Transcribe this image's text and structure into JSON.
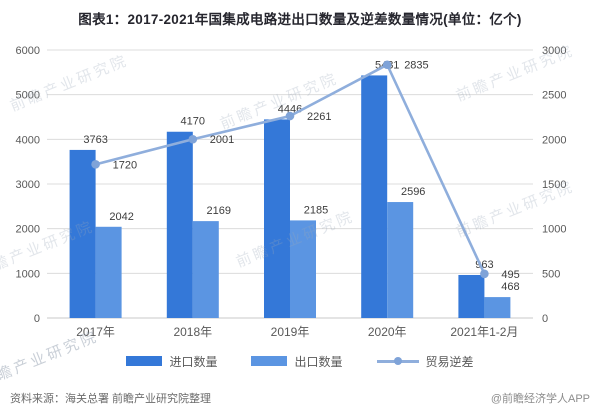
{
  "title": "图表1：2017-2021年国集成电路进出口数量及逆差数量情况(单位：亿个)",
  "colors": {
    "import_bar": "#3478d8",
    "export_bar": "#5b95e2",
    "deficit_line": "#8faedc",
    "deficit_marker": "#7fa3d8",
    "grid": "#dcdcdc",
    "zero_line": "#c9c9c9",
    "tick_text": "#595959",
    "label_text": "#3d3d3d",
    "category_text": "#595959"
  },
  "chart_data": {
    "type": "bar+line combo",
    "categories": [
      "2017年",
      "2018年",
      "2019年",
      "2020年",
      "2021年1-2月"
    ],
    "series": [
      {
        "name": "进口数量",
        "type": "bar",
        "axis": "left",
        "values": [
          3763,
          4170,
          4446,
          5431,
          963
        ]
      },
      {
        "name": "出口数量",
        "type": "bar",
        "axis": "left",
        "values": [
          2042,
          2169,
          2185,
          2596,
          468
        ]
      },
      {
        "name": "贸易逆差",
        "type": "line",
        "axis": "right",
        "values": [
          1720,
          2001,
          2261,
          2835,
          495
        ]
      }
    ],
    "left_axis": {
      "min": 0,
      "max": 6000,
      "step": 1000,
      "ticks": [
        0,
        1000,
        2000,
        3000,
        4000,
        5000,
        6000
      ]
    },
    "right_axis": {
      "min": 0,
      "max": 3000,
      "step": 500,
      "ticks": [
        0,
        500,
        1000,
        1500,
        2000,
        2500,
        3000
      ]
    },
    "grid": true,
    "legend_position": "bottom",
    "unit": "亿个"
  },
  "legend": [
    {
      "label": "进口数量",
      "type": "bar",
      "color": "#3478d8"
    },
    {
      "label": "出口数量",
      "type": "bar",
      "color": "#5b95e2"
    },
    {
      "label": "贸易逆差",
      "type": "line",
      "color": "#8faedc"
    }
  ],
  "source": {
    "left": "资料来源：海关总署 前瞻产业研究院整理",
    "right": "@前瞻经济学人APP"
  },
  "watermark": {
    "text": "前瞻产业研究院"
  }
}
